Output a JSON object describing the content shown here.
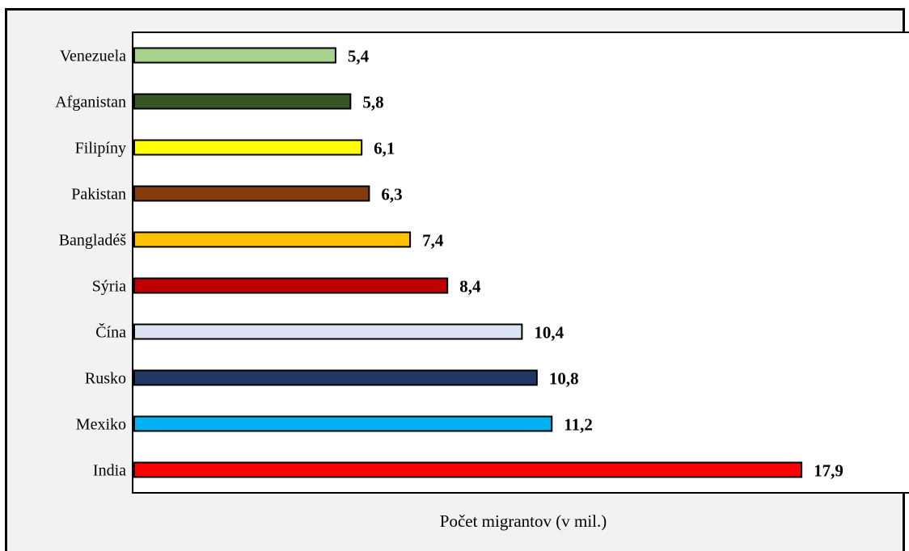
{
  "chart_data": {
    "type": "bar",
    "orientation": "horizontal",
    "categories": [
      "Venezuela",
      "Afganistan",
      "Filipíny",
      "Pakistan",
      "Bangladéš",
      "Sýria",
      "Čína",
      "Rusko",
      "Mexiko",
      "India"
    ],
    "values": [
      5.4,
      5.8,
      6.1,
      6.3,
      7.4,
      8.4,
      10.4,
      10.8,
      11.2,
      17.9
    ],
    "value_labels": [
      "5,4",
      "5,8",
      "6,1",
      "6,3",
      "7,4",
      "8,4",
      "10,4",
      "10,8",
      "11,2",
      "17,9"
    ],
    "colors": [
      "#a9d18e",
      "#375623",
      "#ffff00",
      "#843c0c",
      "#ffc000",
      "#c00000",
      "#dae3f3",
      "#1f3864",
      "#00b0f0",
      "#ff0000"
    ],
    "xlabel": "Počet migrantov (v mil.)",
    "xlim": [
      0,
      21
    ],
    "grid": false,
    "legend": "none"
  }
}
